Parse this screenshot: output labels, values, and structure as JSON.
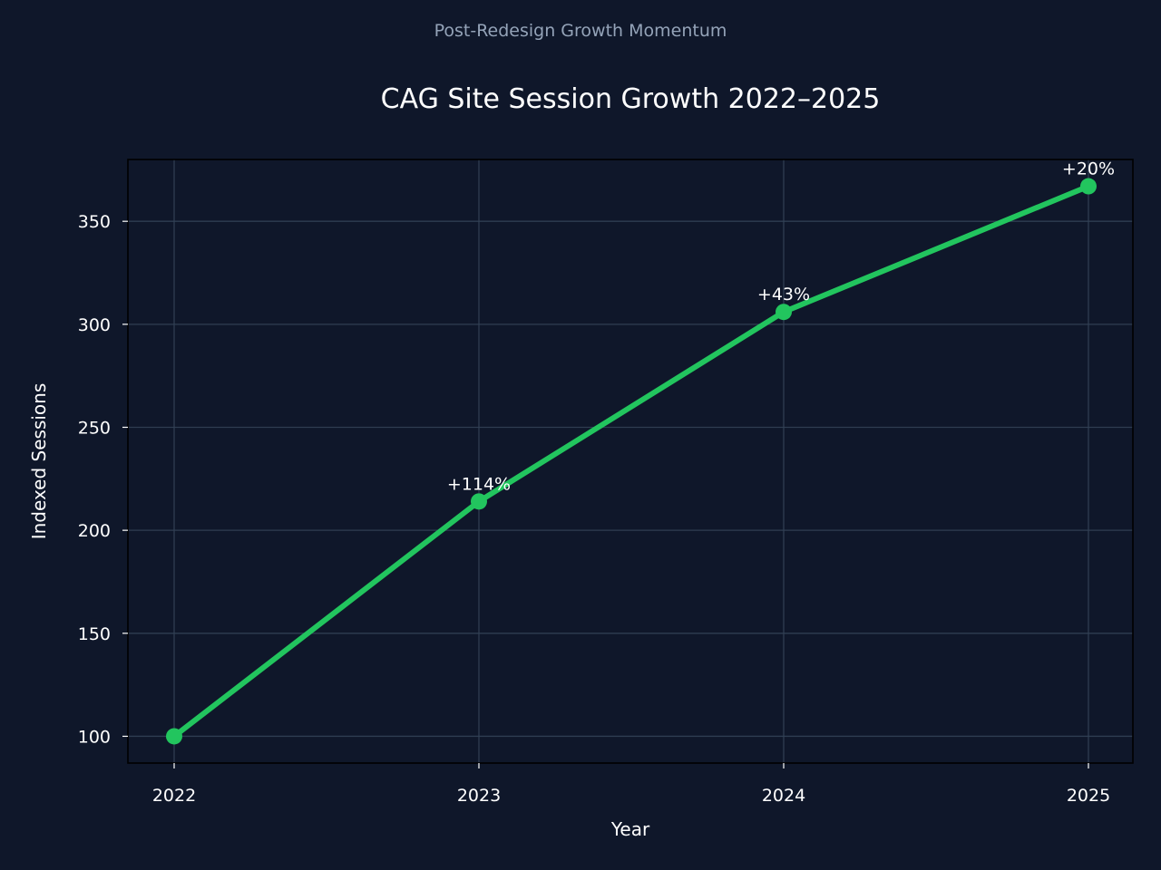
{
  "chart_data": {
    "type": "line",
    "suptitle": "Post-Redesign Growth Momentum",
    "title": "CAG Site Session Growth 2022–2025",
    "xlabel": "Year",
    "ylabel": "Indexed Sessions",
    "x": [
      "2022",
      "2023",
      "2024",
      "2025"
    ],
    "series": [
      {
        "values": [
          100,
          214,
          306,
          367
        ],
        "data_labels": [
          "",
          "+114%",
          "+43%",
          "+20%"
        ]
      }
    ],
    "yticks": [
      100,
      150,
      200,
      250,
      300,
      350
    ],
    "ylim": [
      87,
      380
    ],
    "grid": true,
    "colors": {
      "background": "#0f172a",
      "line": "#22c55e",
      "grid": "#334155",
      "text": "#ffffff",
      "suptitle": "#94a3b8"
    }
  }
}
